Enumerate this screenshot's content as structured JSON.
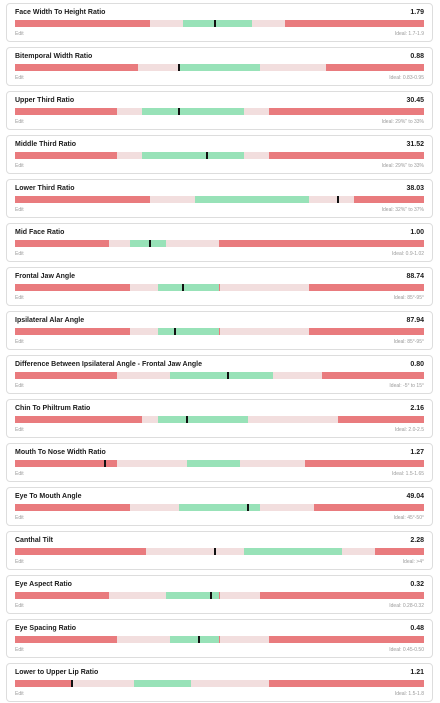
{
  "colors": {
    "out_of_range": "#e97b7e",
    "near_range": "#f2dede",
    "ideal": "#98e2b8",
    "marker": "#111111"
  },
  "metrics": [
    {
      "name": "Face Width To Height Ratio",
      "value": "1.79",
      "edit_label": "Edit",
      "ideal_label": "Ideal: 1.7-1.9",
      "bands": [
        0,
        0.33,
        0.41,
        0.58,
        0.66,
        1
      ],
      "marker": 0.49
    },
    {
      "name": "Bitemporal Width Ratio",
      "value": "0.88",
      "edit_label": "Edit",
      "ideal_label": "Ideal: 0.83-0.95",
      "bands": [
        0,
        0.3,
        0.4,
        0.6,
        0.76,
        1
      ],
      "marker": 0.4
    },
    {
      "name": "Upper Third Ratio",
      "value": "30.45",
      "edit_label": "Edit",
      "ideal_label": "Ideal: 29%\" to 33%",
      "bands": [
        0,
        0.25,
        0.31,
        0.56,
        0.62,
        1
      ],
      "marker": 0.4
    },
    {
      "name": "Middle Third Ratio",
      "value": "31.52",
      "edit_label": "Edit",
      "ideal_label": "Ideal: 29%\" to 33%",
      "bands": [
        0,
        0.25,
        0.31,
        0.56,
        0.62,
        1
      ],
      "marker": 0.47
    },
    {
      "name": "Lower Third Ratio",
      "value": "38.03",
      "edit_label": "Edit",
      "ideal_label": "Ideal: 32%\" to 37%",
      "bands": [
        0,
        0.33,
        0.44,
        0.72,
        0.83,
        1
      ],
      "marker": 0.79
    },
    {
      "name": "Mid Face Ratio",
      "value": "1.00",
      "edit_label": "Edit",
      "ideal_label": "Ideal: 0.9-1.02",
      "bands": [
        0,
        0.23,
        0.28,
        0.37,
        0.5,
        1
      ],
      "marker": 0.33
    },
    {
      "name": "Frontal Jaw Angle",
      "value": "88.74",
      "edit_label": "Edit",
      "ideal_label": "Ideal: 85°-95°",
      "bands": [
        0,
        0.28,
        0.35,
        0.5,
        0.72,
        1
      ],
      "marker": 0.41
    },
    {
      "name": "Ipsilateral Alar Angle",
      "value": "87.94",
      "edit_label": "Edit",
      "ideal_label": "Ideal: 85°-95°",
      "bands": [
        0,
        0.28,
        0.35,
        0.5,
        0.72,
        1
      ],
      "marker": 0.39
    },
    {
      "name": "Difference Between Ipsilateral Angle - Frontal Jaw Angle",
      "value": "0.80",
      "edit_label": "Edit",
      "ideal_label": "Ideal: -5° to 15°",
      "bands": [
        0,
        0.25,
        0.38,
        0.63,
        0.75,
        1
      ],
      "marker": 0.52
    },
    {
      "name": "Chin To Philtrum Ratio",
      "value": "2.16",
      "edit_label": "Edit",
      "ideal_label": "Ideal: 2.0-2.5",
      "bands": [
        0,
        0.31,
        0.35,
        0.57,
        0.79,
        1
      ],
      "marker": 0.42
    },
    {
      "name": "Mouth To Nose Width Ratio",
      "value": "1.27",
      "edit_label": "Edit",
      "ideal_label": "Ideal: 1.5-1.65",
      "bands": [
        0,
        0.25,
        0.42,
        0.55,
        0.71,
        1
      ],
      "marker": 0.22
    },
    {
      "name": "Eye To Mouth Angle",
      "value": "49.04",
      "edit_label": "Edit",
      "ideal_label": "Ideal: 45°-50°",
      "bands": [
        0,
        0.28,
        0.4,
        0.6,
        0.73,
        1
      ],
      "marker": 0.57
    },
    {
      "name": "Canthal Tilt",
      "value": "2.28",
      "edit_label": "Edit",
      "ideal_label": "Ideal: >4°",
      "bands": [
        0,
        0.32,
        0.56,
        0.8,
        0.88,
        1
      ],
      "marker": 0.49
    },
    {
      "name": "Eye Aspect Ratio",
      "value": "0.32",
      "edit_label": "Edit",
      "ideal_label": "Ideal: 0.28-0.32",
      "bands": [
        0,
        0.23,
        0.37,
        0.5,
        0.6,
        1
      ],
      "marker": 0.48
    },
    {
      "name": "Eye Spacing Ratio",
      "value": "0.48",
      "edit_label": "Edit",
      "ideal_label": "Ideal: 0.45-0.50",
      "bands": [
        0,
        0.25,
        0.38,
        0.5,
        0.62,
        1
      ],
      "marker": 0.45
    },
    {
      "name": "Lower to Upper Lip Ratio",
      "value": "1.21",
      "edit_label": "Edit",
      "ideal_label": "Ideal: 1.5-1.8",
      "bands": [
        0,
        0.14,
        0.29,
        0.43,
        0.62,
        1
      ],
      "marker": 0.14
    }
  ]
}
